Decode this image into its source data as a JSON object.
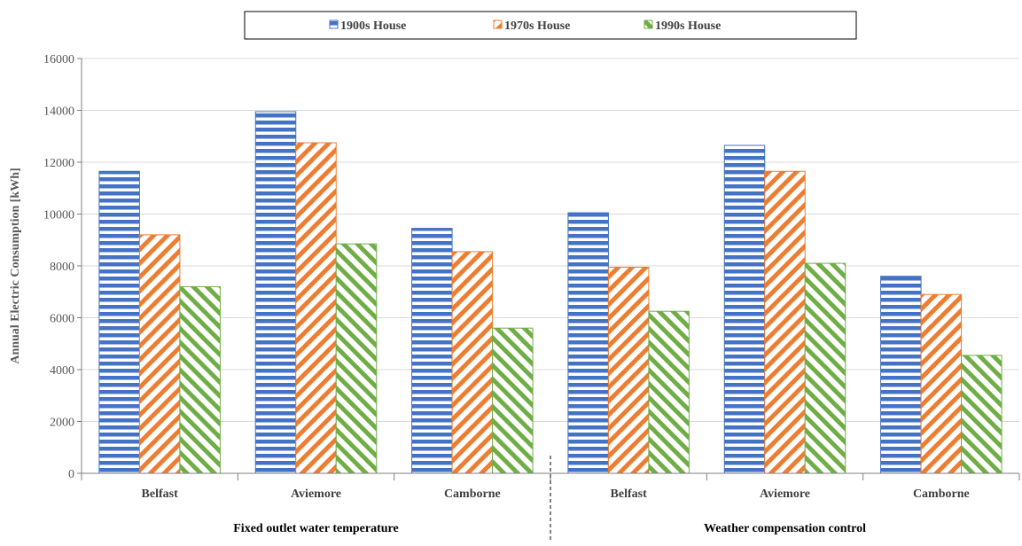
{
  "chart_data": {
    "type": "bar",
    "ylabel": "Annual  Electric Consumption  [kWh]",
    "ylim": [
      0,
      16000
    ],
    "yticks": [
      0,
      2000,
      4000,
      6000,
      8000,
      10000,
      12000,
      14000,
      16000
    ],
    "grid": true,
    "legend_position": "top-center",
    "groups": [
      {
        "label": "Fixed outlet water temperature",
        "categories": [
          "Belfast",
          "Aviemore",
          "Camborne"
        ]
      },
      {
        "label": "Weather compensation control",
        "categories": [
          "Belfast",
          "Aviemore",
          "Camborne"
        ]
      }
    ],
    "categories": [
      "Belfast",
      "Aviemore",
      "Camborne",
      "Belfast",
      "Aviemore",
      "Camborne"
    ],
    "series": [
      {
        "name": "1900s House",
        "color": "#4472C4",
        "pattern": "horizontal-stripes",
        "values": [
          11650,
          13950,
          9450,
          10050,
          12650,
          7600
        ]
      },
      {
        "name": "1970s House",
        "color": "#ED7D31",
        "pattern": "diagonal-stripes-down",
        "values": [
          9200,
          12750,
          8550,
          7950,
          11650,
          6900
        ]
      },
      {
        "name": "1990s House",
        "color": "#70AD47",
        "pattern": "diagonal-stripes-up",
        "values": [
          7200,
          8850,
          5600,
          6250,
          8100,
          4550
        ]
      }
    ]
  }
}
